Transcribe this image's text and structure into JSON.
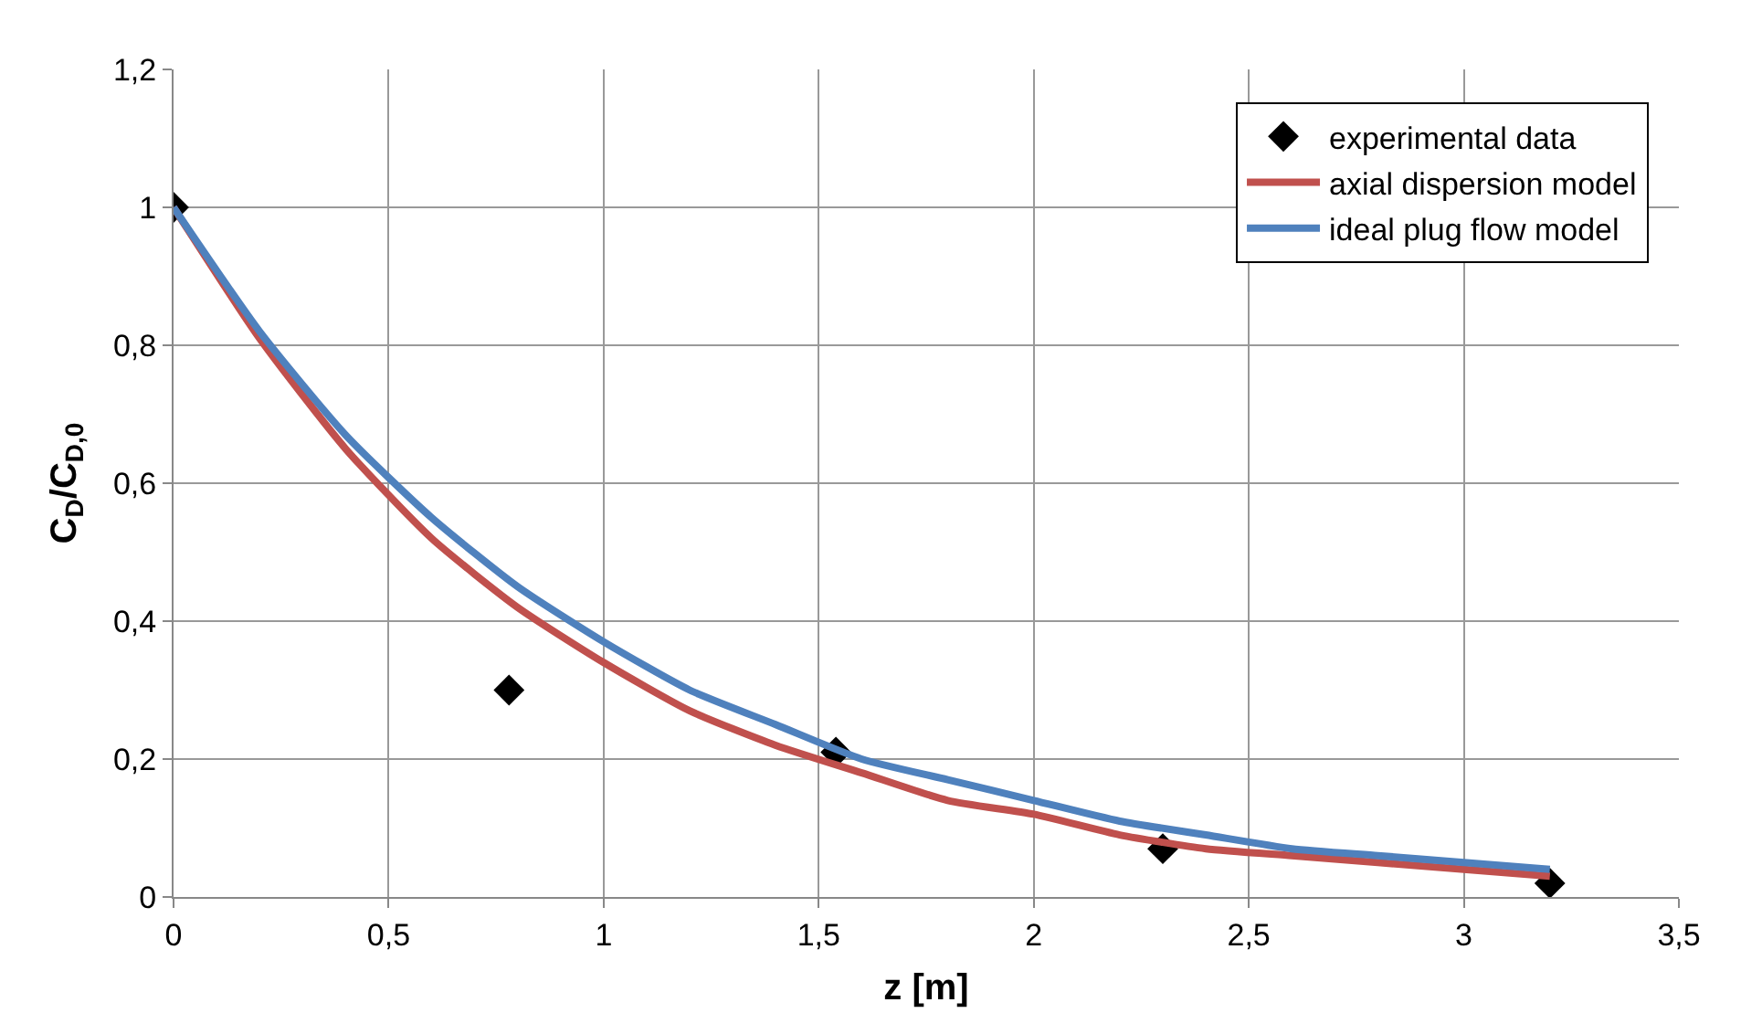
{
  "chart_data": {
    "type": "line",
    "xlabel": "z [m]",
    "ylabel": "C$_{D}$/C$_{D,0}$",
    "xlim": [
      0,
      3.5
    ],
    "xticks": [
      0,
      {
        "value": 0.5,
        "label": "0,5"
      },
      1,
      {
        "value": 1.5,
        "label": "1,5"
      },
      2,
      {
        "value": 2.5,
        "label": "2,5"
      },
      3,
      {
        "value": 3.5,
        "label": "3,5"
      }
    ],
    "ylim": [
      0,
      1.2
    ],
    "yticks": [
      0,
      {
        "value": 0.2,
        "label": "0,2"
      },
      {
        "value": 0.4,
        "label": "0,4"
      },
      {
        "value": 0.6,
        "label": "0,6"
      },
      {
        "value": 0.8,
        "label": "0,8"
      },
      1,
      {
        "value": 1.2,
        "label": "1,2"
      }
    ],
    "grid": true,
    "legend": "top right",
    "series": [
      {
        "name": "experimental data",
        "type": "scatter",
        "marker": "diamond",
        "color": "#000000",
        "x": [
          0,
          0.78,
          1.54,
          2.3,
          3.2
        ],
        "values": [
          1,
          0.3,
          0.21,
          0.07,
          0.02
        ]
      },
      {
        "name": "axial dispersion model",
        "color": "#c0504d",
        "x": [
          0,
          0.2,
          0.4,
          0.6,
          0.8,
          1,
          1.2,
          1.4,
          1.6,
          1.8,
          2,
          2.2,
          2.4,
          2.6,
          2.8,
          3,
          3.2
        ],
        "values": [
          1,
          0.81,
          0.65,
          0.52,
          0.42,
          0.34,
          0.27,
          0.22,
          0.18,
          0.14,
          0.12,
          0.09,
          0.07,
          0.06,
          0.05,
          0.04,
          0.03
        ]
      },
      {
        "name": "ideal plug flow model",
        "color": "#4f81bd",
        "x": [
          0,
          0.2,
          0.4,
          0.6,
          0.8,
          1,
          1.2,
          1.4,
          1.6,
          1.8,
          2,
          2.2,
          2.4,
          2.6,
          2.8,
          3,
          3.2
        ],
        "values": [
          1,
          0.82,
          0.67,
          0.55,
          0.45,
          0.37,
          0.3,
          0.25,
          0.2,
          0.17,
          0.14,
          0.11,
          0.09,
          0.07,
          0.06,
          0.05,
          0.04
        ]
      }
    ]
  }
}
